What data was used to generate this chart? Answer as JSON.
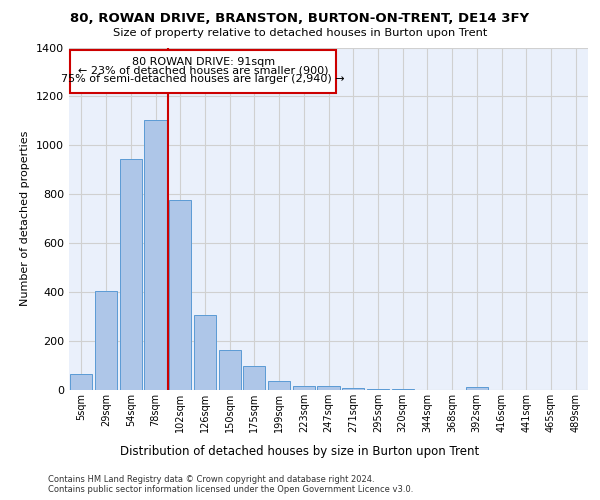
{
  "title_line1": "80, ROWAN DRIVE, BRANSTON, BURTON-ON-TRENT, DE14 3FY",
  "title_line2": "Size of property relative to detached houses in Burton upon Trent",
  "xlabel": "Distribution of detached houses by size in Burton upon Trent",
  "ylabel": "Number of detached properties",
  "categories": [
    "5sqm",
    "29sqm",
    "54sqm",
    "78sqm",
    "102sqm",
    "126sqm",
    "150sqm",
    "175sqm",
    "199sqm",
    "223sqm",
    "247sqm",
    "271sqm",
    "295sqm",
    "320sqm",
    "344sqm",
    "368sqm",
    "392sqm",
    "416sqm",
    "441sqm",
    "465sqm",
    "489sqm"
  ],
  "bar_values": [
    65,
    405,
    945,
    1105,
    775,
    305,
    165,
    100,
    35,
    18,
    15,
    10,
    5,
    5,
    0,
    0,
    12,
    0,
    0,
    0,
    0
  ],
  "bar_color": "#aec6e8",
  "bar_edge_color": "#5b9bd5",
  "annotation_line_label": "80 ROWAN DRIVE: 91sqm",
  "annotation_text2": "← 23% of detached houses are smaller (900)",
  "annotation_text3": "75% of semi-detached houses are larger (2,940) →",
  "annotation_box_edge": "#cc0000",
  "vline_color": "#cc0000",
  "ylim": [
    0,
    1400
  ],
  "yticks": [
    0,
    200,
    400,
    600,
    800,
    1000,
    1200,
    1400
  ],
  "grid_color": "#d0d0d0",
  "background_color": "#eaf0fb",
  "footer1": "Contains HM Land Registry data © Crown copyright and database right 2024.",
  "footer2": "Contains public sector information licensed under the Open Government Licence v3.0."
}
